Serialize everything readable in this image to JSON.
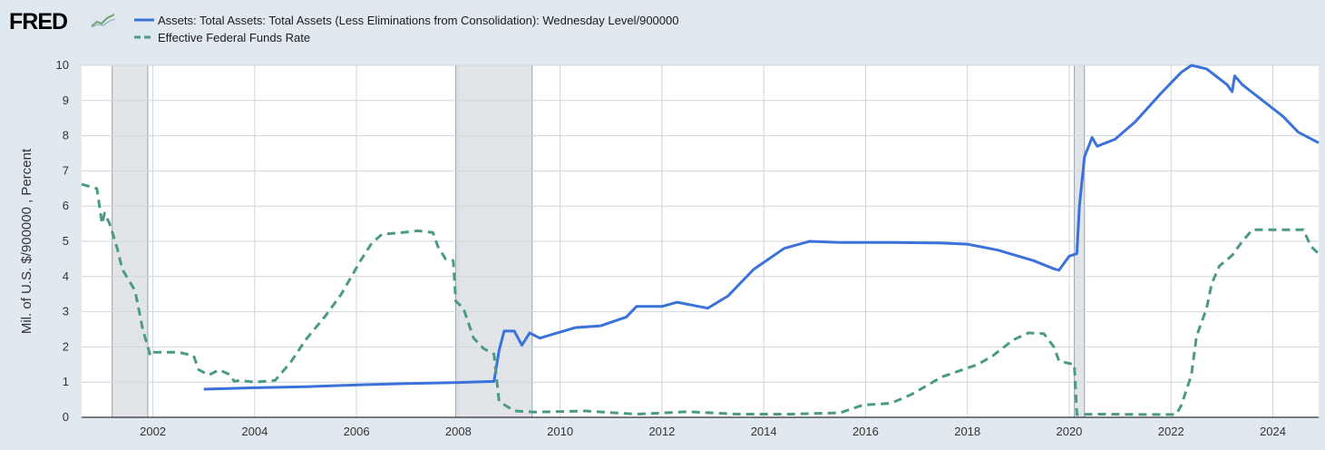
{
  "header": {
    "logo_text": "FRED",
    "logo_mark": "FRED ® logo with small graph icon"
  },
  "chart_data": {
    "type": "line",
    "ylabel": "Mil. of U.S. $/900000 , Percent",
    "xlim": [
      2000.6,
      2024.9
    ],
    "ylim": [
      0,
      10
    ],
    "x_ticks": [
      "2002",
      "2004",
      "2006",
      "2008",
      "2010",
      "2012",
      "2014",
      "2016",
      "2018",
      "2020",
      "2022",
      "2024"
    ],
    "y_ticks": [
      "0",
      "1",
      "2",
      "3",
      "4",
      "5",
      "6",
      "7",
      "8",
      "9",
      "10"
    ],
    "grid": true,
    "legend_position": "top-left",
    "recessions": [
      [
        2001.2,
        2001.9
      ],
      [
        2007.95,
        2009.45
      ],
      [
        2020.1,
        2020.3
      ]
    ],
    "series": [
      {
        "name": "Assets: Total Assets: Total Assets (Less Eliminations from Consolidation): Wednesday Level/900000",
        "color": "#3b72d9",
        "style": "solid",
        "points": [
          [
            2003.0,
            0.8
          ],
          [
            2004.0,
            0.84
          ],
          [
            2005.0,
            0.87
          ],
          [
            2006.0,
            0.92
          ],
          [
            2007.0,
            0.96
          ],
          [
            2008.0,
            0.99
          ],
          [
            2008.7,
            1.02
          ],
          [
            2008.8,
            1.9
          ],
          [
            2008.9,
            2.45
          ],
          [
            2009.1,
            2.45
          ],
          [
            2009.25,
            2.05
          ],
          [
            2009.4,
            2.4
          ],
          [
            2009.6,
            2.25
          ],
          [
            2009.9,
            2.38
          ],
          [
            2010.3,
            2.55
          ],
          [
            2010.8,
            2.6
          ],
          [
            2011.3,
            2.85
          ],
          [
            2011.5,
            3.15
          ],
          [
            2012.0,
            3.15
          ],
          [
            2012.3,
            3.27
          ],
          [
            2012.9,
            3.1
          ],
          [
            2013.3,
            3.45
          ],
          [
            2013.8,
            4.2
          ],
          [
            2014.4,
            4.8
          ],
          [
            2014.9,
            5.0
          ],
          [
            2015.5,
            4.97
          ],
          [
            2016.5,
            4.97
          ],
          [
            2017.5,
            4.95
          ],
          [
            2018.0,
            4.92
          ],
          [
            2018.6,
            4.75
          ],
          [
            2019.3,
            4.45
          ],
          [
            2019.7,
            4.22
          ],
          [
            2019.8,
            4.18
          ],
          [
            2020.0,
            4.58
          ],
          [
            2020.15,
            4.65
          ],
          [
            2020.2,
            6.0
          ],
          [
            2020.3,
            7.4
          ],
          [
            2020.45,
            7.95
          ],
          [
            2020.55,
            7.7
          ],
          [
            2020.9,
            7.9
          ],
          [
            2021.3,
            8.4
          ],
          [
            2021.8,
            9.2
          ],
          [
            2022.2,
            9.8
          ],
          [
            2022.4,
            10.0
          ],
          [
            2022.7,
            9.9
          ],
          [
            2023.1,
            9.45
          ],
          [
            2023.2,
            9.25
          ],
          [
            2023.25,
            9.7
          ],
          [
            2023.4,
            9.45
          ],
          [
            2023.8,
            9.0
          ],
          [
            2024.2,
            8.55
          ],
          [
            2024.5,
            8.1
          ],
          [
            2024.9,
            7.8
          ]
        ]
      },
      {
        "name": "Effective Federal Funds Rate",
        "color": "#4c9a86",
        "style": "dashed",
        "points": [
          [
            2000.6,
            6.62
          ],
          [
            2000.9,
            6.5
          ],
          [
            2001.0,
            5.5
          ],
          [
            2001.05,
            5.8
          ],
          [
            2001.15,
            5.5
          ],
          [
            2001.3,
            4.8
          ],
          [
            2001.4,
            4.2
          ],
          [
            2001.65,
            3.6
          ],
          [
            2001.8,
            2.5
          ],
          [
            2001.95,
            1.75
          ],
          [
            2002.0,
            1.85
          ],
          [
            2002.5,
            1.85
          ],
          [
            2002.8,
            1.75
          ],
          [
            2002.9,
            1.35
          ],
          [
            2003.1,
            1.2
          ],
          [
            2003.3,
            1.35
          ],
          [
            2003.5,
            1.22
          ],
          [
            2003.6,
            1.02
          ],
          [
            2003.7,
            1.05
          ],
          [
            2004.0,
            1.0
          ],
          [
            2004.4,
            1.05
          ],
          [
            2004.7,
            1.55
          ],
          [
            2005.0,
            2.2
          ],
          [
            2005.4,
            2.9
          ],
          [
            2005.7,
            3.5
          ],
          [
            2005.9,
            4.0
          ],
          [
            2006.1,
            4.5
          ],
          [
            2006.3,
            4.95
          ],
          [
            2006.5,
            5.2
          ],
          [
            2006.9,
            5.25
          ],
          [
            2007.2,
            5.3
          ],
          [
            2007.5,
            5.25
          ],
          [
            2007.6,
            4.85
          ],
          [
            2007.75,
            4.5
          ],
          [
            2007.9,
            4.45
          ],
          [
            2007.95,
            3.3
          ],
          [
            2008.1,
            3.1
          ],
          [
            2008.3,
            2.25
          ],
          [
            2008.5,
            1.95
          ],
          [
            2008.7,
            1.8
          ],
          [
            2008.8,
            0.45
          ],
          [
            2009.1,
            0.18
          ],
          [
            2009.5,
            0.15
          ],
          [
            2010.5,
            0.18
          ],
          [
            2011.5,
            0.09
          ],
          [
            2012.5,
            0.16
          ],
          [
            2013.5,
            0.09
          ],
          [
            2014.5,
            0.09
          ],
          [
            2015.5,
            0.13
          ],
          [
            2015.95,
            0.35
          ],
          [
            2016.5,
            0.4
          ],
          [
            2016.9,
            0.65
          ],
          [
            2017.2,
            0.9
          ],
          [
            2017.5,
            1.15
          ],
          [
            2017.9,
            1.35
          ],
          [
            2018.2,
            1.5
          ],
          [
            2018.5,
            1.75
          ],
          [
            2018.9,
            2.2
          ],
          [
            2019.2,
            2.4
          ],
          [
            2019.5,
            2.38
          ],
          [
            2019.7,
            2.0
          ],
          [
            2019.8,
            1.6
          ],
          [
            2019.95,
            1.55
          ],
          [
            2020.1,
            1.5
          ],
          [
            2020.15,
            0.08
          ],
          [
            2020.6,
            0.09
          ],
          [
            2021.5,
            0.08
          ],
          [
            2022.1,
            0.08
          ],
          [
            2022.2,
            0.33
          ],
          [
            2022.4,
            1.2
          ],
          [
            2022.5,
            2.3
          ],
          [
            2022.7,
            3.1
          ],
          [
            2022.8,
            3.8
          ],
          [
            2022.95,
            4.3
          ],
          [
            2023.2,
            4.6
          ],
          [
            2023.4,
            5.0
          ],
          [
            2023.6,
            5.33
          ],
          [
            2024.2,
            5.33
          ],
          [
            2024.6,
            5.33
          ],
          [
            2024.75,
            4.85
          ],
          [
            2024.9,
            4.65
          ]
        ]
      }
    ]
  }
}
